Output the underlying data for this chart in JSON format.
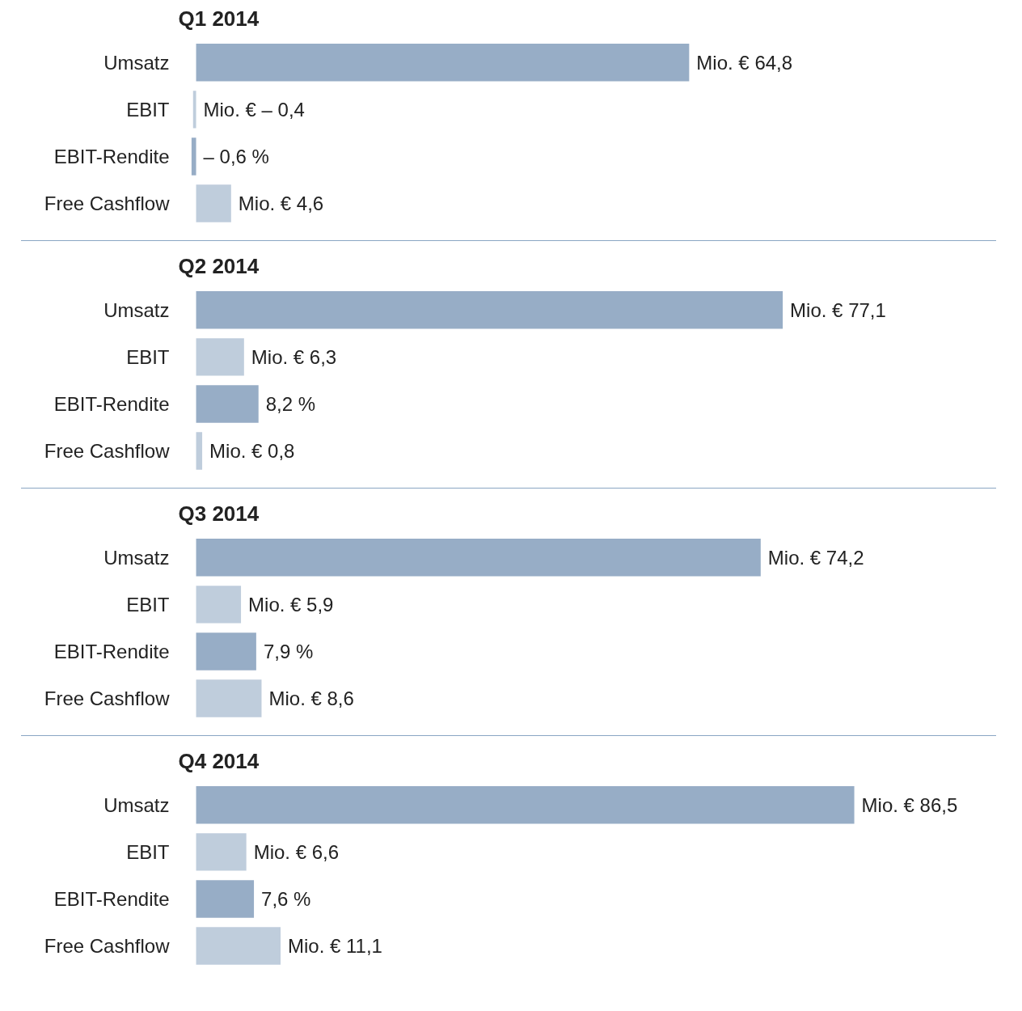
{
  "chart_data": [
    {
      "type": "bar",
      "orientation": "horizontal",
      "title": "Q1 2014",
      "categories": [
        "Umsatz",
        "EBIT",
        "EBIT-Rendite",
        "Free Cashflow"
      ],
      "values": [
        64.8,
        -0.4,
        -0.6,
        4.6
      ],
      "colors": [
        "#97adc6",
        "#bfcddc",
        "#97adc6",
        "#bfcddc"
      ],
      "value_labels": [
        "Mio. € 64,8",
        "Mio. € – 0,4",
        "– 0,6 %",
        "Mio. € 4,6"
      ],
      "tick_labels": "y"
    },
    {
      "type": "bar",
      "orientation": "horizontal",
      "title": "Q2 2014",
      "categories": [
        "Umsatz",
        "EBIT",
        "EBIT-Rendite",
        "Free Cashflow"
      ],
      "values": [
        77.1,
        6.3,
        8.2,
        0.8
      ],
      "colors": [
        "#97adc6",
        "#bfcddc",
        "#97adc6",
        "#bfcddc"
      ],
      "value_labels": [
        "Mio. € 77,1",
        "Mio. € 6,3",
        "8,2 %",
        "Mio. € 0,8"
      ],
      "tick_labels": "y"
    },
    {
      "type": "bar",
      "orientation": "horizontal",
      "title": "Q3 2014",
      "categories": [
        "Umsatz",
        "EBIT",
        "EBIT-Rendite",
        "Free Cashflow"
      ],
      "values": [
        74.2,
        5.9,
        7.9,
        8.6
      ],
      "colors": [
        "#97adc6",
        "#bfcddc",
        "#97adc6",
        "#bfcddc"
      ],
      "value_labels": [
        "Mio. € 74,2",
        "Mio. € 5,9",
        "7,9 %",
        "Mio. € 8,6"
      ],
      "tick_labels": "y"
    },
    {
      "type": "bar",
      "orientation": "horizontal",
      "title": "Q4 2014",
      "categories": [
        "Umsatz",
        "EBIT",
        "EBIT-Rendite",
        "Free Cashflow"
      ],
      "values": [
        86.5,
        6.6,
        7.6,
        11.1
      ],
      "colors": [
        "#97adc6",
        "#bfcddc",
        "#97adc6",
        "#bfcddc"
      ],
      "value_labels": [
        "Mio. € 86,5",
        "Mio. € 6,6",
        "7,6 %",
        "Mio. € 11,1"
      ],
      "tick_labels": "y"
    }
  ]
}
